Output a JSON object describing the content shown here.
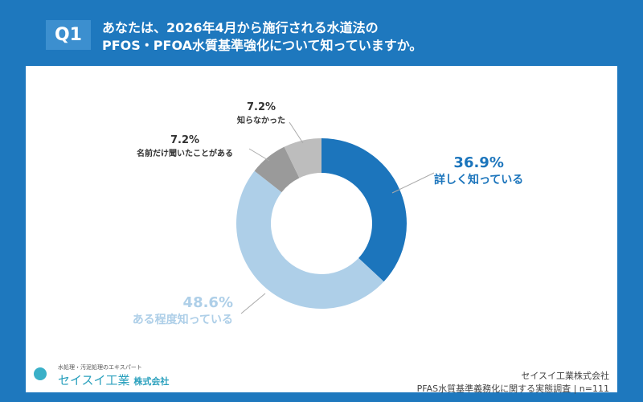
{
  "header": {
    "q_label": "Q1",
    "title_line1": "あなたは、2026年4月から施行される水道法の",
    "title_line2": "PFOS・PFOA水質基準強化について知っていますか。"
  },
  "chart_data": {
    "type": "donut",
    "categories": [
      "詳しく知っている",
      "ある程度知っている",
      "名前だけ聞いたことがある",
      "知らなかった"
    ],
    "values": [
      36.9,
      48.6,
      7.2,
      7.2
    ],
    "value_labels": [
      "36.9%",
      "48.6%",
      "7.2%",
      "7.2%"
    ],
    "colors": [
      "#1c75bc",
      "#aecfe8",
      "#9a9a9a",
      "#bdbdbd"
    ],
    "label_colors": [
      "#1c75bc",
      "#aecfe8",
      "#333333",
      "#333333"
    ]
  },
  "footer": {
    "company": "セイスイ工業株式会社",
    "survey": "PFAS水質基準義務化に関する実態調査 | n=111",
    "logo_tagline": "水処理・汚泥処理のエキスパート",
    "logo_name": "セイスイ工業",
    "logo_suffix": "株式会社"
  }
}
